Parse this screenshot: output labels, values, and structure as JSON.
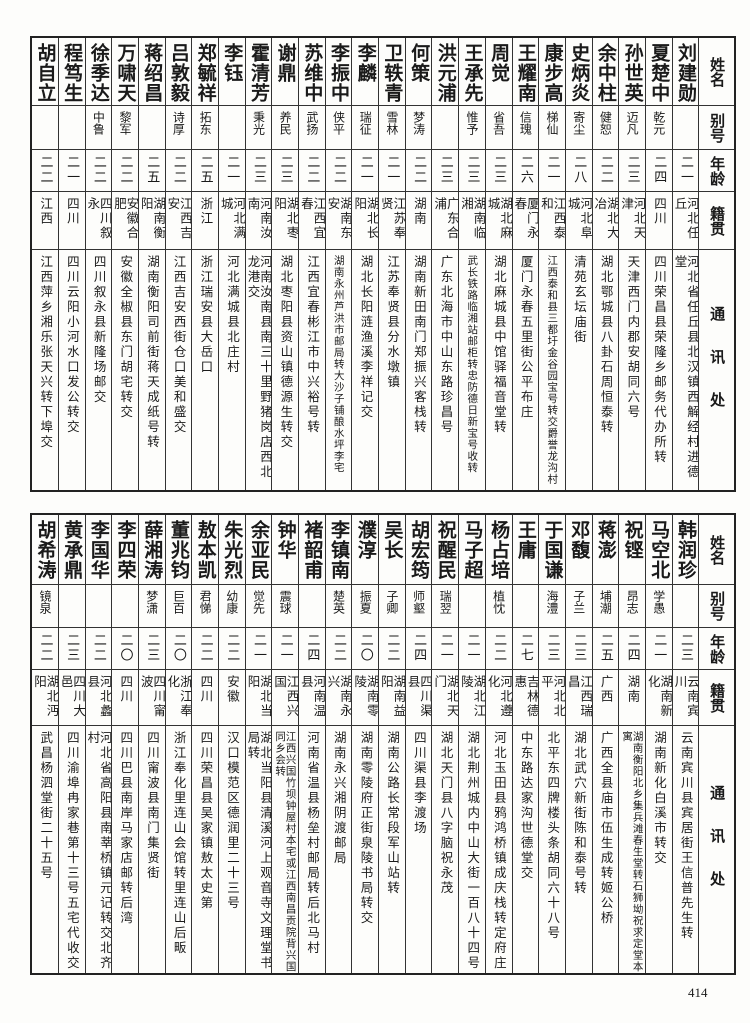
{
  "headers": {
    "name": "姓名",
    "alias": "别号",
    "age": "年龄",
    "native": "籍贯",
    "address": "通讯处"
  },
  "tables": [
    {
      "rows": [
        {
          "name": "刘建勋",
          "alias": "",
          "age": "二一",
          "native": "河北任丘",
          "address": "河北省任丘县北汉镇西解经村进德堂"
        },
        {
          "name": "夏楚中",
          "alias": "乾元",
          "age": "二四",
          "native": "四川",
          "address": "四川荣昌县荣隆乡邮务代办所转"
        },
        {
          "name": "孙世英",
          "alias": "迈凡",
          "age": "二三",
          "native": "河北天津",
          "address": "天津西门内郡安胡同六号"
        },
        {
          "name": "余中柱",
          "alias": "健恕",
          "age": "二二",
          "native": "湖北大冶",
          "address": "湖北鄂城县八卦石周恒泰转"
        },
        {
          "name": "史炳炎",
          "alias": "寄尘",
          "age": "二八",
          "native": "河北阜城",
          "address": "清苑玄坛庙街"
        },
        {
          "name": "康步高",
          "alias": "梯仙",
          "age": "二一",
          "native": "江西泰和",
          "address": "江西泰和县三都圩金谷园宝号转交爵誉龙沟村"
        },
        {
          "name": "王耀南",
          "alias": "信瑰",
          "age": "二六",
          "native": "厦门永春",
          "address": "厦门永春五里街公平布庄"
        },
        {
          "name": "周觉",
          "alias": "省吾",
          "age": "二三",
          "native": "湖北麻城",
          "address": "湖北麻城县中馆驿福音堂转"
        },
        {
          "name": "王承先",
          "alias": "惟予",
          "age": "二三",
          "native": "湖南临湘",
          "address": "武长铁路临湘站邮柜转忠防德日新宝号收转"
        },
        {
          "name": "洪元浦",
          "alias": "",
          "age": "二三",
          "native": "广东合浦",
          "address": "广东北海市中山东路珍昌号"
        },
        {
          "name": "何策",
          "alias": "梦涛",
          "age": "二二",
          "native": "湖南",
          "address": "湖南新田南门郑振兴客栈转"
        },
        {
          "name": "卫轶青",
          "alias": "雪林",
          "age": "二一",
          "native": "江苏奉贤",
          "address": "江苏奉贤县分水墩镇"
        },
        {
          "name": "李麟",
          "alias": "瑞征",
          "age": "二一",
          "native": "湖北长阳",
          "address": "湖北长阳涟渔溪李祥记交"
        },
        {
          "name": "李振中",
          "alias": "侠平",
          "age": "二二",
          "native": "湖南东安",
          "address": "湖南永州芦洪市邮局转大沙子铺酿水坪李宅"
        },
        {
          "name": "苏维中",
          "alias": "武扬",
          "age": "二二",
          "native": "江西宜春",
          "address": "江西宜春彬江市中兴裕号转"
        },
        {
          "name": "谢鼎",
          "alias": "养民",
          "age": "二三",
          "native": "湖北枣阳",
          "address": "湖北枣阳县资山镇德源生转交"
        },
        {
          "name": "霍清芳",
          "alias": "秉光",
          "age": "二三",
          "native": "河南汝南",
          "address": "河南汝南县南三十里野猪岗店西北龙港交"
        },
        {
          "name": "李钰",
          "alias": "",
          "age": "二一",
          "native": "河北满城",
          "address": "河北满城县北庄村"
        },
        {
          "name": "郑毓祥",
          "alias": "拓东",
          "age": "二五",
          "native": "浙江",
          "address": "浙江瑞安县大岳口"
        },
        {
          "name": "吕敦毅",
          "alias": "诗厚",
          "age": "二二",
          "native": "江西吉安",
          "address": "江西吉安西街仓口美和盛交"
        },
        {
          "name": "蒋绍昌",
          "alias": "",
          "age": "二五",
          "native": "湖南衡阳",
          "address": "湖南衡阳司前街蒋天成纸号转"
        },
        {
          "name": "万啸天",
          "alias": "黎军",
          "age": "二二",
          "native": "安徽合肥",
          "address": "安徽全椒县东门胡宅转交"
        },
        {
          "name": "徐季达",
          "alias": "中鲁",
          "age": "二二",
          "native": "四川叙永",
          "address": "四川叙永县新隆场邮交"
        },
        {
          "name": "程笃生",
          "alias": "",
          "age": "二一",
          "native": "四川",
          "address": "四川云阳小河水口发公转交"
        },
        {
          "name": "胡自立",
          "alias": "",
          "age": "二二",
          "native": "江西",
          "address": "江西萍乡湘乐张天兴转下埠交"
        }
      ]
    },
    {
      "rows": [
        {
          "name": "韩润珍",
          "alias": "",
          "age": "二三",
          "native": "云南宾川",
          "address": "云南宾川县宾居街王信普先生转"
        },
        {
          "name": "马空北",
          "alias": "学愚",
          "age": "二一",
          "native": "湖南新化",
          "address": "湖南新化白溪市转交"
        },
        {
          "name": "祝铿",
          "alias": "昂志",
          "age": "二四",
          "native": "湖南",
          "address": "湖南衡阳北乡集兵滩春生堂转石狮坳祝求定堂本寓"
        },
        {
          "name": "蒋澎",
          "alias": "埔潮",
          "age": "二五",
          "native": "广西",
          "address": "广西全县庙市伍生成转姬公桥"
        },
        {
          "name": "邓馥",
          "alias": "子兰",
          "age": "二三",
          "native": "江西瑞昌",
          "address": "湖北武穴新街陈和泰号转"
        },
        {
          "name": "于国谦",
          "alias": "海澧",
          "age": "二三",
          "native": "河北北平",
          "address": "北平东四牌楼头条胡同六十八号"
        },
        {
          "name": "王庸",
          "alias": "",
          "age": "二七",
          "native": "吉林德惠",
          "address": "中东路达家沟世德堂交"
        },
        {
          "name": "杨占培",
          "alias": "植忱",
          "age": "二二",
          "native": "河北遵化",
          "address": "河北玉田县鸦鸿桥镇成庆栈转定府庄"
        },
        {
          "name": "马子超",
          "alias": "",
          "age": "二一",
          "native": "湖北江陵",
          "address": "湖北荆州城内中山大街一百八十四号"
        },
        {
          "name": "祝醒民",
          "alias": "瑞翌",
          "age": "二一",
          "native": "湖北天门",
          "address": "湖北天门县八字脑祝永茂"
        },
        {
          "name": "胡宏筠",
          "alias": "师壑",
          "age": "二四",
          "native": "四川渠县",
          "address": "四川渠县李渡场"
        },
        {
          "name": "吴长",
          "alias": "子卿",
          "age": "二二",
          "native": "湖南益阳",
          "address": "湖南公路长常段军山站转"
        },
        {
          "name": "濮淳",
          "alias": "振夏",
          "age": "二〇",
          "native": "湖南零陵",
          "address": "湖南零陵府正街泉陵书局转交"
        },
        {
          "name": "李镇南",
          "alias": "楚英",
          "age": "二二",
          "native": "湖南永兴",
          "address": "湖南永兴湘阴渡邮局"
        },
        {
          "name": "褚韶甫",
          "alias": "",
          "age": "二四",
          "native": "河南温县",
          "address": "河南省温县杨垒村邮局转后北马村"
        },
        {
          "name": "钟华",
          "alias": "震球",
          "age": "二一",
          "native": "江西兴国",
          "address": "江西兴国竹坝钟屋村本宅或江西南昌贡院背兴国同乡会转"
        },
        {
          "name": "余亚民",
          "alias": "觉先",
          "age": "二一",
          "native": "湖北当阳",
          "address": "湖北当阳县清溪河上观音寺文理堂书局转"
        },
        {
          "name": "朱光烈",
          "alias": "幼康",
          "age": "二二",
          "native": "安徽",
          "address": "汉口模范区德润里二十三号"
        },
        {
          "name": "敖本凯",
          "alias": "君悌",
          "age": "二二",
          "native": "四川",
          "address": "四川荣昌县吴家镇敖太史第"
        },
        {
          "name": "董兆钧",
          "alias": "巨百",
          "age": "二〇",
          "native": "浙江奉化",
          "address": "浙江奉化里连山会馆转里连山后畈"
        },
        {
          "name": "薛湘涛",
          "alias": "梦潇",
          "age": "二三",
          "native": "四川甯波",
          "address": "四川甯波县南门集贤街"
        },
        {
          "name": "李四荣",
          "alias": "",
          "age": "二〇",
          "native": "四川",
          "address": "四川巴县南岸马家店邮转后湾"
        },
        {
          "name": "李国华",
          "alias": "",
          "age": "二二",
          "native": "河北蠡县",
          "address": "河北省高阳县南莘桥镇元记转交北齐村"
        },
        {
          "name": "黄承鼎",
          "alias": "",
          "age": "二三",
          "native": "四川大邑",
          "address": "四川渝埠冉家巷第十三号五宅代收交"
        },
        {
          "name": "胡希涛",
          "alias": "镜泉",
          "age": "二二",
          "native": "湖北沔阳",
          "address": "武昌杨泗堂街二十五号"
        }
      ]
    }
  ],
  "page_number": "414"
}
